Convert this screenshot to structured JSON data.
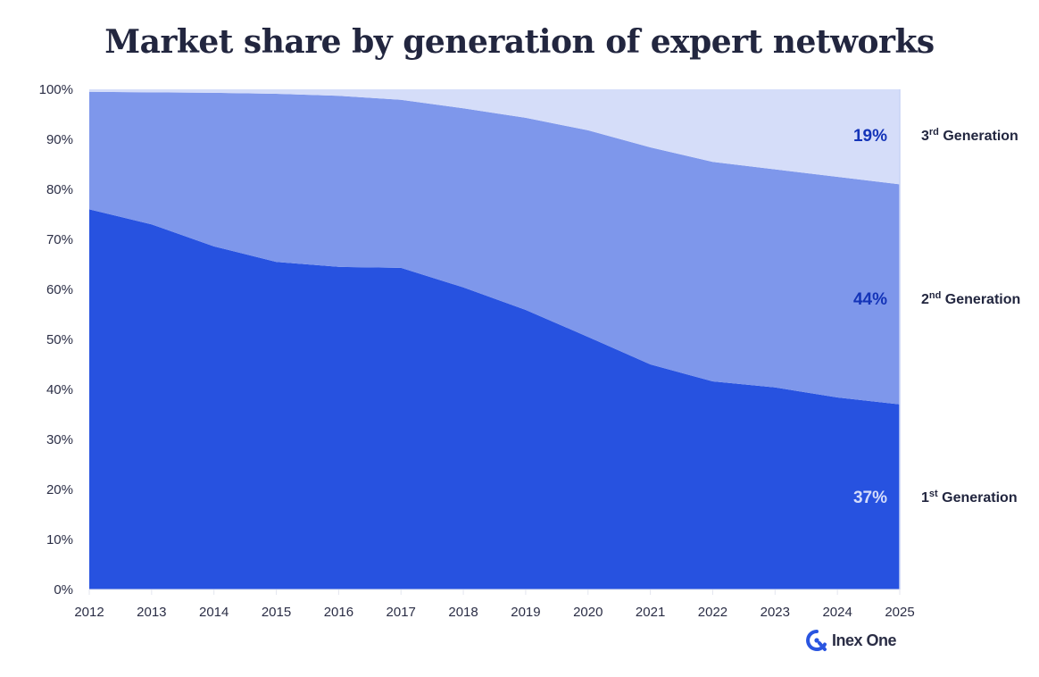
{
  "title": "Market share by generation of expert networks",
  "brand": {
    "name": "Inex One",
    "icon": "inex-one-logo-icon",
    "color": "#2a55e0"
  },
  "chart_data": {
    "type": "area",
    "stacked": true,
    "title": "Market share by generation of expert networks",
    "xlabel": "",
    "ylabel": "",
    "x": [
      2012,
      2013,
      2014,
      2015,
      2016,
      2017,
      2018,
      2019,
      2020,
      2021,
      2022,
      2023,
      2024,
      2025
    ],
    "ylim": [
      0,
      100
    ],
    "yticks": [
      "0%",
      "10%",
      "20%",
      "30%",
      "40%",
      "50%",
      "60%",
      "70%",
      "80%",
      "90%",
      "100%"
    ],
    "xticks": [
      "2012",
      "2013",
      "2014",
      "2015",
      "2016",
      "2017",
      "2018",
      "2019",
      "2020",
      "2021",
      "2022",
      "2023",
      "2024",
      "2025"
    ],
    "grid": false,
    "legend_placement": "right",
    "series": [
      {
        "name": "1st Generation",
        "label_main": "1",
        "label_sup": "st",
        "label_rest": " Generation",
        "color": "#2752e0",
        "end_label": "37%",
        "end_label_color": "#d5ddfb",
        "values": [
          76,
          73,
          68.6,
          65.5,
          64.5,
          64.3,
          60.4,
          55.9,
          50.5,
          45,
          41.6,
          40.4,
          38.4,
          37
        ]
      },
      {
        "name": "2nd Generation",
        "label_main": "2",
        "label_sup": "nd",
        "label_rest": " Generation",
        "color": "#7e97eb",
        "end_label": "44%",
        "end_label_color": "#1434b8",
        "values": [
          23.5,
          26.4,
          30.7,
          33.6,
          34.2,
          33.6,
          35.8,
          38.4,
          41.3,
          43.4,
          43.9,
          43.6,
          44.1,
          44
        ]
      },
      {
        "name": "3rd Generation",
        "label_main": "3",
        "label_sup": "rd",
        "label_rest": " Generation",
        "color": "#d5ddf9",
        "end_label": "19%",
        "end_label_color": "#1434b8",
        "values": [
          0.5,
          0.6,
          0.7,
          0.9,
          1.3,
          2.1,
          3.8,
          5.7,
          8.2,
          11.6,
          14.5,
          16,
          17.5,
          19
        ]
      }
    ]
  }
}
